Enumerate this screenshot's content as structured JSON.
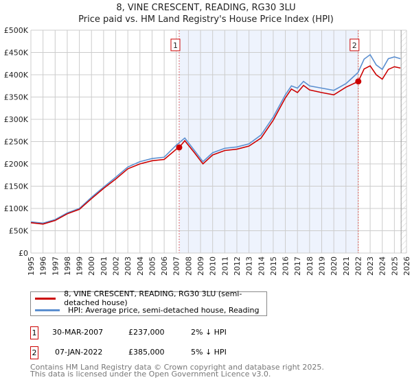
{
  "chart_data": {
    "type": "line",
    "title": "8, VINE CRESCENT, READING, RG30 3LU",
    "subtitle": "Price paid vs. HM Land Registry's House Price Index (HPI)",
    "xlim": [
      1995,
      2026
    ],
    "ylim": [
      0,
      500000
    ],
    "x_ticks": [
      "1995",
      "1996",
      "1997",
      "1998",
      "1999",
      "2000",
      "2001",
      "2002",
      "2003",
      "2004",
      "2005",
      "2006",
      "2007",
      "2008",
      "2009",
      "2010",
      "2011",
      "2012",
      "2013",
      "2014",
      "2015",
      "2016",
      "2017",
      "2018",
      "2019",
      "2020",
      "2021",
      "2022",
      "2023",
      "2024",
      "2025",
      "2026"
    ],
    "y_ticks": [
      "£0",
      "£50K",
      "£100K",
      "£150K",
      "£200K",
      "£250K",
      "£300K",
      "£350K",
      "£400K",
      "£450K",
      "£500K"
    ],
    "grid": true,
    "series": [
      {
        "name": "8, VINE CRESCENT, READING, RG30 3LU (semi-detached house)",
        "color": "#cc0000",
        "x": [
          1995,
          1996,
          1997,
          1998,
          1999,
          2000,
          2001,
          2002,
          2003,
          2004,
          2005,
          2006,
          2007,
          2007.24,
          2007.7,
          2008.5,
          2009.2,
          2010,
          2011,
          2012,
          2013,
          2014,
          2015,
          2016,
          2016.5,
          2017,
          2017.5,
          2018,
          2019,
          2020,
          2021,
          2022.02,
          2022.5,
          2023,
          2023.5,
          2024,
          2024.5,
          2025,
          2025.5
        ],
        "y": [
          68000,
          65000,
          73000,
          88000,
          98000,
          122000,
          145000,
          166000,
          189000,
          200000,
          207000,
          210000,
          233000,
          237000,
          252000,
          225000,
          200000,
          220000,
          230000,
          233000,
          240000,
          258000,
          298000,
          348000,
          368000,
          360000,
          376000,
          366000,
          360000,
          355000,
          372000,
          385000,
          413000,
          420000,
          400000,
          390000,
          412000,
          418000,
          415000
        ]
      },
      {
        "name": "HPI: Average price, semi-detached house, Reading",
        "color": "#5b8fd0",
        "x": [
          1995,
          1996,
          1997,
          1998,
          1999,
          2000,
          2001,
          2002,
          2003,
          2004,
          2005,
          2006,
          2007,
          2007.7,
          2008.5,
          2009.2,
          2010,
          2011,
          2012,
          2013,
          2014,
          2015,
          2016,
          2016.5,
          2017,
          2017.5,
          2018,
          2019,
          2020,
          2021,
          2022,
          2022.5,
          2023,
          2023.5,
          2024,
          2024.5,
          2025,
          2025.5
        ],
        "y": [
          70000,
          67000,
          75000,
          90000,
          100000,
          125000,
          148000,
          170000,
          193000,
          205000,
          212000,
          215000,
          242000,
          258000,
          230000,
          205000,
          225000,
          235000,
          238000,
          245000,
          265000,
          305000,
          355000,
          375000,
          370000,
          385000,
          375000,
          370000,
          365000,
          380000,
          405000,
          435000,
          445000,
          422000,
          412000,
          436000,
          440000,
          436000
        ]
      }
    ],
    "sales": [
      {
        "label": "1",
        "date": "30-MAR-2007",
        "price": "£237,000",
        "hpi": "2% ↓ HPI",
        "x": 2007.24,
        "y": 237000
      },
      {
        "label": "2",
        "date": "07-JAN-2022",
        "price": "£385,000",
        "hpi": "5% ↓ HPI",
        "x": 2022.02,
        "y": 385000
      }
    ],
    "shaded_range": [
      2007.24,
      2022.02
    ],
    "hatched_from": 2025.5
  },
  "footer": {
    "line1": "Contains HM Land Registry data © Crown copyright and database right 2025.",
    "line2": "This data is licensed under the Open Government Licence v3.0."
  }
}
